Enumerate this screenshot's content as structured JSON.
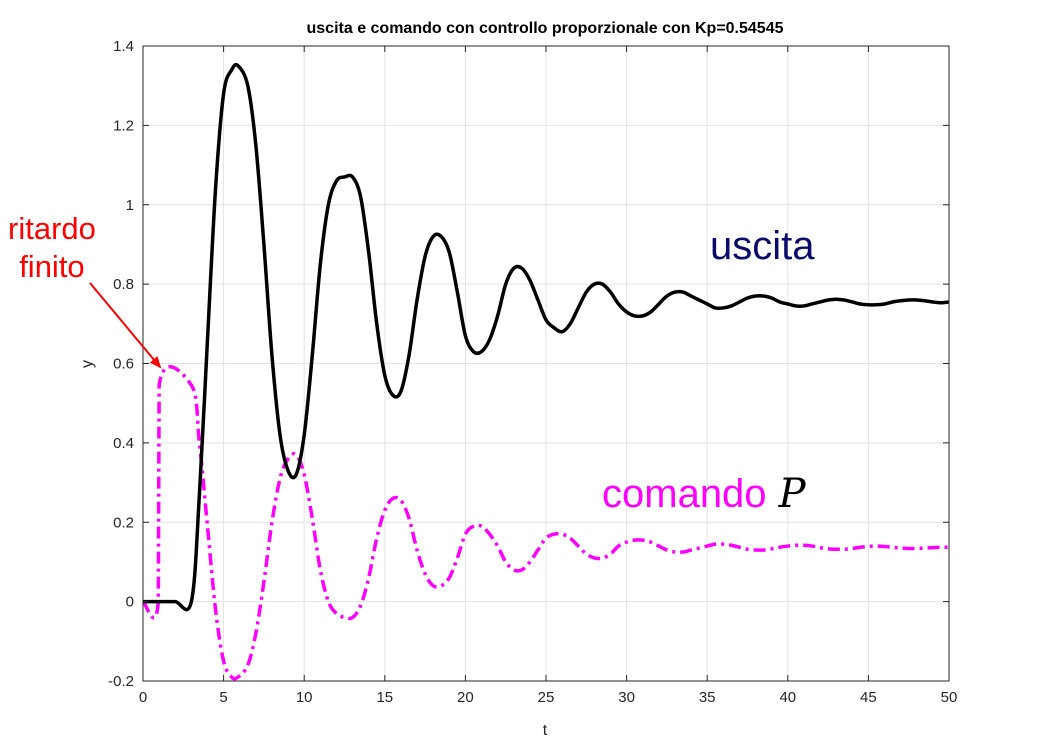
{
  "chart_data": {
    "type": "line",
    "title": "uscita e comando con controllo proporzionale con Kp=0.54545",
    "xlabel": "t",
    "ylabel": "y",
    "xlim": [
      0,
      50
    ],
    "ylim": [
      -0.2,
      1.4
    ],
    "xticks": [
      "0",
      "5",
      "10",
      "15",
      "20",
      "25",
      "30",
      "35",
      "40",
      "45",
      "50"
    ],
    "yticks": [
      "-0.2",
      "0",
      "0.2",
      "0.4",
      "0.6",
      "0.8",
      "1",
      "1.2",
      "1.4"
    ],
    "grid": true,
    "series": [
      {
        "name": "uscita",
        "color": "#000000",
        "style": "solid",
        "x": [
          0,
          1,
          2,
          3,
          3.5,
          4,
          4.5,
          5,
          5.5,
          5.9,
          6.5,
          7,
          7.5,
          8,
          8.5,
          9,
          9.5,
          10,
          10.5,
          11,
          11.5,
          12,
          12.5,
          13,
          13.5,
          14,
          14.5,
          15,
          15.5,
          16,
          16.5,
          17,
          17.5,
          18,
          18.5,
          19,
          19.5,
          20,
          20.5,
          21,
          21.5,
          22,
          22.5,
          23,
          23.5,
          24,
          24.5,
          25,
          25.5,
          26,
          26.5,
          27,
          27.5,
          28,
          28.5,
          29,
          29.5,
          30,
          30.5,
          31,
          31.5,
          32,
          32.5,
          33,
          33.5,
          34,
          34.5,
          35,
          35.5,
          36,
          36.5,
          37,
          37.5,
          38,
          38.5,
          39,
          39.5,
          40,
          40.5,
          41,
          41.5,
          42,
          42.5,
          43,
          43.5,
          44,
          44.5,
          45,
          45.5,
          46,
          46.5,
          47,
          47.5,
          48,
          48.5,
          49,
          49.5,
          50
        ],
        "y": [
          0,
          0,
          0,
          0,
          0.27,
          0.66,
          1.04,
          1.28,
          1.34,
          1.35,
          1.3,
          1.15,
          0.9,
          0.62,
          0.42,
          0.33,
          0.32,
          0.42,
          0.62,
          0.85,
          1.0,
          1.06,
          1.07,
          1.07,
          1.02,
          0.88,
          0.7,
          0.57,
          0.52,
          0.53,
          0.62,
          0.76,
          0.87,
          0.92,
          0.92,
          0.88,
          0.78,
          0.67,
          0.63,
          0.63,
          0.66,
          0.72,
          0.8,
          0.84,
          0.84,
          0.81,
          0.76,
          0.71,
          0.69,
          0.68,
          0.7,
          0.74,
          0.78,
          0.8,
          0.8,
          0.78,
          0.75,
          0.73,
          0.72,
          0.72,
          0.73,
          0.75,
          0.77,
          0.78,
          0.78,
          0.77,
          0.76,
          0.75,
          0.74,
          0.74,
          0.745,
          0.755,
          0.765,
          0.77,
          0.77,
          0.765,
          0.755,
          0.75,
          0.745,
          0.745,
          0.75,
          0.755,
          0.76,
          0.762,
          0.76,
          0.755,
          0.75,
          0.748,
          0.748,
          0.75,
          0.755,
          0.758,
          0.76,
          0.76,
          0.758,
          0.755,
          0.753,
          0.755
        ]
      },
      {
        "name": "comando P",
        "color": "#ff00ff",
        "style": "dashdot",
        "x": [
          0,
          0.95,
          1.0,
          3.0,
          3.5,
          4,
          4.5,
          5,
          5.5,
          5.9,
          6.5,
          7,
          7.5,
          8,
          8.5,
          9,
          9.5,
          10,
          10.5,
          11,
          11.5,
          12,
          12.5,
          13,
          13.5,
          14,
          14.5,
          15,
          15.5,
          16,
          16.5,
          17,
          17.5,
          18,
          18.5,
          19,
          19.5,
          20,
          20.5,
          21,
          21.5,
          22,
          22.5,
          23,
          23.5,
          24,
          24.5,
          25,
          25.5,
          26,
          26.5,
          27,
          27.5,
          28,
          28.5,
          29,
          29.5,
          30,
          30.5,
          31,
          31.5,
          32,
          32.5,
          33,
          33.5,
          34,
          34.5,
          35,
          35.5,
          36,
          36.5,
          37,
          37.5,
          38,
          38.5,
          39,
          39.5,
          40,
          40.5,
          41,
          41.5,
          42,
          42.5,
          43,
          43.5,
          44,
          44.5,
          45,
          45.5,
          46,
          46.5,
          47,
          47.5,
          48,
          48.5,
          49,
          49.5,
          50
        ],
        "y": [
          0,
          0,
          0.54545,
          0.54545,
          0.4,
          0.19,
          -0.02,
          -0.15,
          -0.19,
          -0.19,
          -0.16,
          -0.08,
          0.05,
          0.2,
          0.31,
          0.36,
          0.37,
          0.32,
          0.21,
          0.08,
          0.0,
          -0.03,
          -0.04,
          -0.04,
          -0.01,
          0.06,
          0.16,
          0.23,
          0.26,
          0.255,
          0.21,
          0.13,
          0.07,
          0.04,
          0.04,
          0.06,
          0.11,
          0.17,
          0.19,
          0.19,
          0.17,
          0.14,
          0.1,
          0.08,
          0.08,
          0.1,
          0.13,
          0.16,
          0.17,
          0.17,
          0.16,
          0.14,
          0.12,
          0.11,
          0.11,
          0.12,
          0.14,
          0.15,
          0.155,
          0.155,
          0.15,
          0.14,
          0.13,
          0.125,
          0.125,
          0.13,
          0.135,
          0.14,
          0.145,
          0.145,
          0.142,
          0.137,
          0.132,
          0.13,
          0.13,
          0.133,
          0.137,
          0.14,
          0.142,
          0.142,
          0.14,
          0.136,
          0.133,
          0.132,
          0.132,
          0.134,
          0.137,
          0.139,
          0.14,
          0.139,
          0.137,
          0.135,
          0.134,
          0.134,
          0.135,
          0.136,
          0.137,
          0.137
        ]
      }
    ]
  },
  "annotations": {
    "ritardo_line1": "ritardo",
    "ritardo_line2": "finito",
    "uscita": "uscita",
    "comando": "comando",
    "comando_symbol": "P"
  },
  "colors": {
    "ritardo": "#ff0000",
    "uscita_label": "#0b0b6b",
    "comando": "#ff00ff"
  }
}
